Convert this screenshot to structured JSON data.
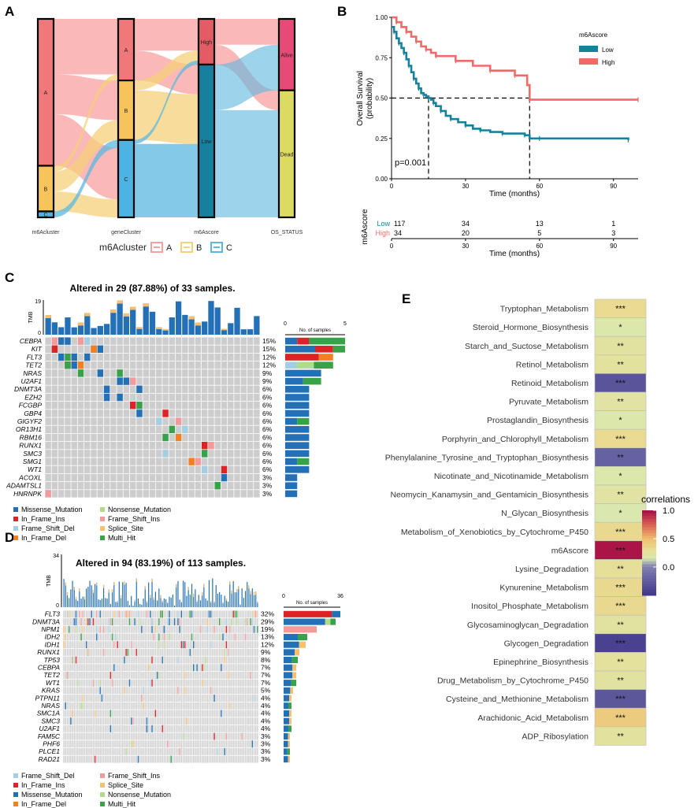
{
  "panel_labels": {
    "a": "A",
    "b": "B",
    "c": "C",
    "d": "D",
    "e": "E"
  },
  "colors": {
    "cluster_a": "#F8A0A0",
    "cluster_b": "#F6D07A",
    "cluster_c": "#5BB8E0",
    "node_a": "#F07878",
    "node_b": "#F6C45A",
    "node_c": "#4DB4E2",
    "high": "#E35B65",
    "low": "#16809E",
    "alive": "#E84A78",
    "dead": "#DDDA62",
    "low_surv": "#16819F",
    "high_surv": "#EE6B68",
    "missense": "#2470B6",
    "nonsense": "#B3D98A",
    "in_frame_ins": "#DC2326",
    "frame_shift_ins": "#F59A9A",
    "frame_shift_del": "#A6CEE3",
    "splice_site": "#F9BF6F",
    "in_frame_del": "#F37F20",
    "multi_hit": "#37A248",
    "grid_cell": "#CDCDCD"
  },
  "chart_data": [
    {
      "type": "sankey",
      "panel": "A",
      "axes": [
        "m6Acluster",
        "geneCluster",
        "m6Ascore",
        "OS_STATUS"
      ],
      "nodes": [
        {
          "axis": 0,
          "label": "A",
          "value": 0.74
        },
        {
          "axis": 0,
          "label": "B",
          "value": 0.23
        },
        {
          "axis": 0,
          "label": "C",
          "value": 0.03
        },
        {
          "axis": 1,
          "label": "A",
          "value": 0.31
        },
        {
          "axis": 1,
          "label": "B",
          "value": 0.3
        },
        {
          "axis": 1,
          "label": "C",
          "value": 0.39
        },
        {
          "axis": 2,
          "label": "High",
          "value": 0.23
        },
        {
          "axis": 2,
          "label": "Low",
          "value": 0.77
        },
        {
          "axis": 3,
          "label": "Alive",
          "value": 0.36
        },
        {
          "axis": 3,
          "label": "Dead",
          "value": 0.64
        }
      ],
      "legend": {
        "title": "m6Acluster",
        "items": [
          "A",
          "B",
          "C"
        ]
      }
    },
    {
      "type": "line",
      "panel": "B",
      "ylabel": "Overall Survival\n(probability)",
      "xlabel": "Time (months)",
      "xlim": [
        0,
        100
      ],
      "ylim": [
        0,
        1
      ],
      "xticks": [
        "0",
        "30",
        "60",
        "90"
      ],
      "yticks": [
        "0.00",
        "0.25",
        "0.50",
        "0.75",
        "1.00"
      ],
      "legend_title": "m6Ascore",
      "pvalue": "p=0.001",
      "series": [
        {
          "name": "Low",
          "points": [
            [
              0,
              0.94
            ],
            [
              1,
              0.91
            ],
            [
              2,
              0.87
            ],
            [
              3,
              0.84
            ],
            [
              4,
              0.81
            ],
            [
              5,
              0.78
            ],
            [
              6,
              0.74
            ],
            [
              7,
              0.7
            ],
            [
              8,
              0.66
            ],
            [
              9,
              0.62
            ],
            [
              10,
              0.59
            ],
            [
              11,
              0.56
            ],
            [
              12,
              0.53
            ],
            [
              13,
              0.52
            ],
            [
              14,
              0.51
            ],
            [
              15,
              0.5
            ],
            [
              16,
              0.49
            ],
            [
              17,
              0.47
            ],
            [
              18,
              0.45
            ],
            [
              20,
              0.42
            ],
            [
              22,
              0.39
            ],
            [
              24,
              0.37
            ],
            [
              27,
              0.35
            ],
            [
              30,
              0.33
            ],
            [
              33,
              0.31
            ],
            [
              36,
              0.3
            ],
            [
              40,
              0.29
            ],
            [
              45,
              0.28
            ],
            [
              50,
              0.28
            ],
            [
              54,
              0.27
            ],
            [
              56,
              0.25
            ],
            [
              60,
              0.25
            ],
            [
              80,
              0.25
            ],
            [
              96,
              0.24
            ]
          ]
        },
        {
          "name": "High",
          "points": [
            [
              0,
              1.0
            ],
            [
              2,
              0.97
            ],
            [
              4,
              0.94
            ],
            [
              6,
              0.91
            ],
            [
              8,
              0.88
            ],
            [
              10,
              0.85
            ],
            [
              12,
              0.82
            ],
            [
              14,
              0.8
            ],
            [
              16,
              0.78
            ],
            [
              18,
              0.76
            ],
            [
              20,
              0.76
            ],
            [
              26,
              0.73
            ],
            [
              33,
              0.7
            ],
            [
              40,
              0.67
            ],
            [
              44,
              0.67
            ],
            [
              50,
              0.64
            ],
            [
              55,
              0.58
            ],
            [
              56,
              0.49
            ],
            [
              70,
              0.49
            ],
            [
              100,
              0.49
            ]
          ]
        }
      ],
      "risk_table": {
        "title": "m6Ascore",
        "rows": [
          {
            "name": "Low",
            "values": [
              "117",
              "34",
              "13",
              "1"
            ]
          },
          {
            "name": "High",
            "values": [
              "34",
              "20",
              "5",
              "3"
            ]
          }
        ]
      }
    },
    {
      "type": "heatmap",
      "panel": "C",
      "title": "Altered in 29 (87.88%) of 33 samples.",
      "tmb_label": "TMB",
      "tmb_max": "19",
      "bar_axis_title": "No. of samples",
      "bar_axis_max": "5",
      "n_samples": 33,
      "genes": [
        {
          "name": "CEBPA",
          "pct": "15%",
          "count": 5,
          "n": "5"
        },
        {
          "name": "KIT",
          "pct": "15%",
          "count": 5,
          "n": "5"
        },
        {
          "name": "FLT3",
          "pct": "12%",
          "count": 4,
          "n": "4"
        },
        {
          "name": "TET2",
          "pct": "12%",
          "count": 4,
          "n": "4"
        },
        {
          "name": "NRAS",
          "pct": "9%",
          "count": 3,
          "n": "3"
        },
        {
          "name": "U2AF1",
          "pct": "9%",
          "count": 3,
          "n": "3"
        },
        {
          "name": "DNMT3A",
          "pct": "6%",
          "count": 2,
          "n": "2"
        },
        {
          "name": "EZH2",
          "pct": "6%",
          "count": 2,
          "n": "2"
        },
        {
          "name": "FCGBP",
          "pct": "6%",
          "count": 2,
          "n": "2"
        },
        {
          "name": "GBP4",
          "pct": "6%",
          "count": 2,
          "n": "2"
        },
        {
          "name": "GIGYF2",
          "pct": "6%",
          "count": 2,
          "n": "2"
        },
        {
          "name": "OR13H1",
          "pct": "6%",
          "count": 2,
          "n": "2"
        },
        {
          "name": "RBM16",
          "pct": "6%",
          "count": 2,
          "n": "2"
        },
        {
          "name": "RUNX1",
          "pct": "6%",
          "count": 2,
          "n": "2"
        },
        {
          "name": "SMC3",
          "pct": "6%",
          "count": 2,
          "n": "2"
        },
        {
          "name": "SMG1",
          "pct": "6%",
          "count": 2,
          "n": "2"
        },
        {
          "name": "WT1",
          "pct": "6%",
          "count": 2,
          "n": "2"
        },
        {
          "name": "ACOXL",
          "pct": "3%",
          "count": 1,
          "n": "1"
        },
        {
          "name": "ADAMTSL1",
          "pct": "3%",
          "count": 1,
          "n": "1"
        },
        {
          "name": "HNRNPK",
          "pct": "3%",
          "count": 1,
          "n": "1"
        }
      ],
      "legend": [
        "Missense_Mutation",
        "Nonsense_Mutation",
        "In_Frame_Ins",
        "Frame_Shift_Ins",
        "Frame_Shift_Del",
        "Splice_Site",
        "In_Frame_Del",
        "Multi_Hit"
      ]
    },
    {
      "type": "heatmap",
      "panel": "D",
      "title": "Altered in 94 (83.19%) of 113 samples.",
      "tmb_label": "TMB",
      "tmb_max": "34",
      "bar_axis_title": "No. of samples",
      "bar_axis_max": "36",
      "n_samples": 113,
      "genes": [
        {
          "name": "FLT3",
          "pct": "32%",
          "count": 36
        },
        {
          "name": "DNMT3A",
          "pct": "29%",
          "count": 33
        },
        {
          "name": "NPM1",
          "pct": "19%",
          "count": 21
        },
        {
          "name": "IDH2",
          "pct": "13%",
          "count": 15
        },
        {
          "name": "IDH1",
          "pct": "12%",
          "count": 14
        },
        {
          "name": "RUNX1",
          "pct": "9%",
          "count": 10
        },
        {
          "name": "TP53",
          "pct": "8%",
          "count": 9
        },
        {
          "name": "CEBPA",
          "pct": "7%",
          "count": 8
        },
        {
          "name": "TET2",
          "pct": "7%",
          "count": 8
        },
        {
          "name": "WT1",
          "pct": "7%",
          "count": 8
        },
        {
          "name": "KRAS",
          "pct": "5%",
          "count": 6
        },
        {
          "name": "PTPN11",
          "pct": "4%",
          "count": 5
        },
        {
          "name": "NRAS",
          "pct": "4%",
          "count": 5
        },
        {
          "name": "SMC1A",
          "pct": "4%",
          "count": 5
        },
        {
          "name": "SMC3",
          "pct": "4%",
          "count": 5
        },
        {
          "name": "U2AF1",
          "pct": "4%",
          "count": 5
        },
        {
          "name": "FAM5C",
          "pct": "3%",
          "count": 4
        },
        {
          "name": "PHF6",
          "pct": "3%",
          "count": 4
        },
        {
          "name": "PLCE1",
          "pct": "3%",
          "count": 4
        },
        {
          "name": "RAD21",
          "pct": "3%",
          "count": 4
        }
      ],
      "legend": [
        "Frame_Shift_Del",
        "Frame_Shift_Ins",
        "In_Frame_Ins",
        "Splice_Site",
        "Missense_Mutation",
        "Nonsense_Mutation",
        "In_Frame_Del",
        "Multi_Hit"
      ]
    },
    {
      "type": "heatmap",
      "panel": "E",
      "legend_title": "correlations",
      "scale_ticks": [
        "1.0",
        "0.5",
        "0.0"
      ],
      "rows": [
        {
          "label": "Tryptophan_Metabolism",
          "value": 0.32,
          "stars": "***"
        },
        {
          "label": "Steroid_Hormone_Biosynthesis",
          "value": 0.17,
          "stars": "*"
        },
        {
          "label": "Starch_and_Suctose_Metabolism",
          "value": 0.24,
          "stars": "**"
        },
        {
          "label": "Retinol_Metabolism",
          "value": 0.25,
          "stars": "**"
        },
        {
          "label": "Retinoid_Metabolism",
          "value": -0.32,
          "stars": "***"
        },
        {
          "label": "Pyruvate_Metabolism",
          "value": 0.22,
          "stars": "**"
        },
        {
          "label": "Prostaglandin_Biosynthesis",
          "value": 0.17,
          "stars": "*"
        },
        {
          "label": "Porphyrin_and_Chlorophyll_Metabolism",
          "value": 0.32,
          "stars": "***"
        },
        {
          "label": "Phenylalanine_Tyrosine_and_Tryptophan_Biosynthesis",
          "value": -0.22,
          "stars": "**"
        },
        {
          "label": "Nicotinate_and_Nicotinamide_Metabolism",
          "value": 0.17,
          "stars": "*"
        },
        {
          "label": "Neomycin_Kanamysin_and_Gentamicin_Biosynthesis",
          "value": 0.22,
          "stars": "**"
        },
        {
          "label": "N_Glycan_Biosynthesis",
          "value": 0.15,
          "stars": "*"
        },
        {
          "label": "Metabolism_of_Xenobiotics_by_Cytochrome_P450",
          "value": 0.33,
          "stars": "***"
        },
        {
          "label": "m6Ascore",
          "value": 1.0,
          "stars": "***"
        },
        {
          "label": "Lysine_Degradation",
          "value": 0.28,
          "stars": "**"
        },
        {
          "label": "Kynurenine_Metabolism",
          "value": 0.33,
          "stars": "***"
        },
        {
          "label": "Inositol_Phosphate_Metabolism",
          "value": 0.33,
          "stars": "***"
        },
        {
          "label": "Glycosaminoglycan_Degradation",
          "value": 0.24,
          "stars": "**"
        },
        {
          "label": "Glycogen_Degradation",
          "value": -0.45,
          "stars": "***"
        },
        {
          "label": "Epinephrine_Biosynthesis",
          "value": 0.26,
          "stars": "**"
        },
        {
          "label": "Drug_Metabolism_by_Cytochrome_P450",
          "value": 0.24,
          "stars": "**"
        },
        {
          "label": "Cysteine_and_Methionine_Metabolism",
          "value": -0.3,
          "stars": "***"
        },
        {
          "label": "Arachidonic_Acid_Metabolism",
          "value": 0.42,
          "stars": "***"
        },
        {
          "label": "ADP_Ribosylation",
          "value": 0.25,
          "stars": "**"
        }
      ]
    }
  ]
}
